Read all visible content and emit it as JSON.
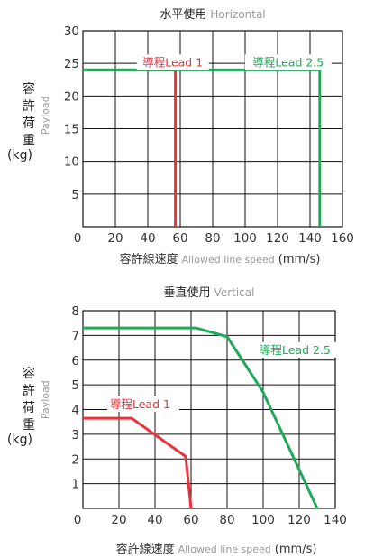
{
  "colors": {
    "lead1": "#e8323c",
    "lead25": "#1faa5a"
  },
  "chart_data": [
    {
      "type": "line",
      "title": "水平使用",
      "title_en": "Horizontal",
      "xlabel": "容許線速度",
      "xlabel_en": "Allowed line speed",
      "xlabel_unit": "(mm/s)",
      "ylabel_lines": [
        "容",
        "許",
        "荷",
        "重"
      ],
      "ylabel_en": "Payload",
      "ylabel_unit": "(kg)",
      "xlim": [
        0,
        160
      ],
      "ylim": [
        0,
        30
      ],
      "xticks": [
        0,
        20,
        40,
        60,
        80,
        100,
        120,
        140,
        160
      ],
      "yticks": [
        0,
        5,
        10,
        15,
        20,
        25,
        30
      ],
      "grid": true,
      "series": [
        {
          "name": "導程Lead 1",
          "color": "#e8323c",
          "x": [
            0,
            57,
            57
          ],
          "y": [
            24,
            24,
            0
          ]
        },
        {
          "name": "導程Lead 2.5",
          "color": "#1faa5a",
          "x": [
            0,
            146,
            146
          ],
          "y": [
            24,
            24,
            0
          ]
        }
      ]
    },
    {
      "type": "line",
      "title": "垂直使用",
      "title_en": "Vertical",
      "xlabel": "容許線速度",
      "xlabel_en": "Allowed line speed",
      "xlabel_unit": "(mm/s)",
      "ylabel_lines": [
        "容",
        "許",
        "荷",
        "重"
      ],
      "ylabel_en": "Payload",
      "ylabel_unit": "(kg)",
      "xlim": [
        0,
        140
      ],
      "ylim": [
        0,
        8
      ],
      "xticks": [
        0,
        20,
        40,
        60,
        80,
        100,
        120,
        140
      ],
      "yticks": [
        0,
        1,
        2,
        3,
        4,
        5,
        6,
        7,
        8
      ],
      "grid": true,
      "series": [
        {
          "name": "導程Lead 1",
          "color": "#e8323c",
          "x": [
            0,
            27,
            57,
            60
          ],
          "y": [
            3.65,
            3.65,
            2.1,
            0
          ]
        },
        {
          "name": "導程Lead 2.5",
          "color": "#1faa5a",
          "x": [
            0,
            63,
            80,
            100,
            130
          ],
          "y": [
            7.3,
            7.3,
            6.95,
            4.7,
            0
          ]
        }
      ]
    }
  ]
}
